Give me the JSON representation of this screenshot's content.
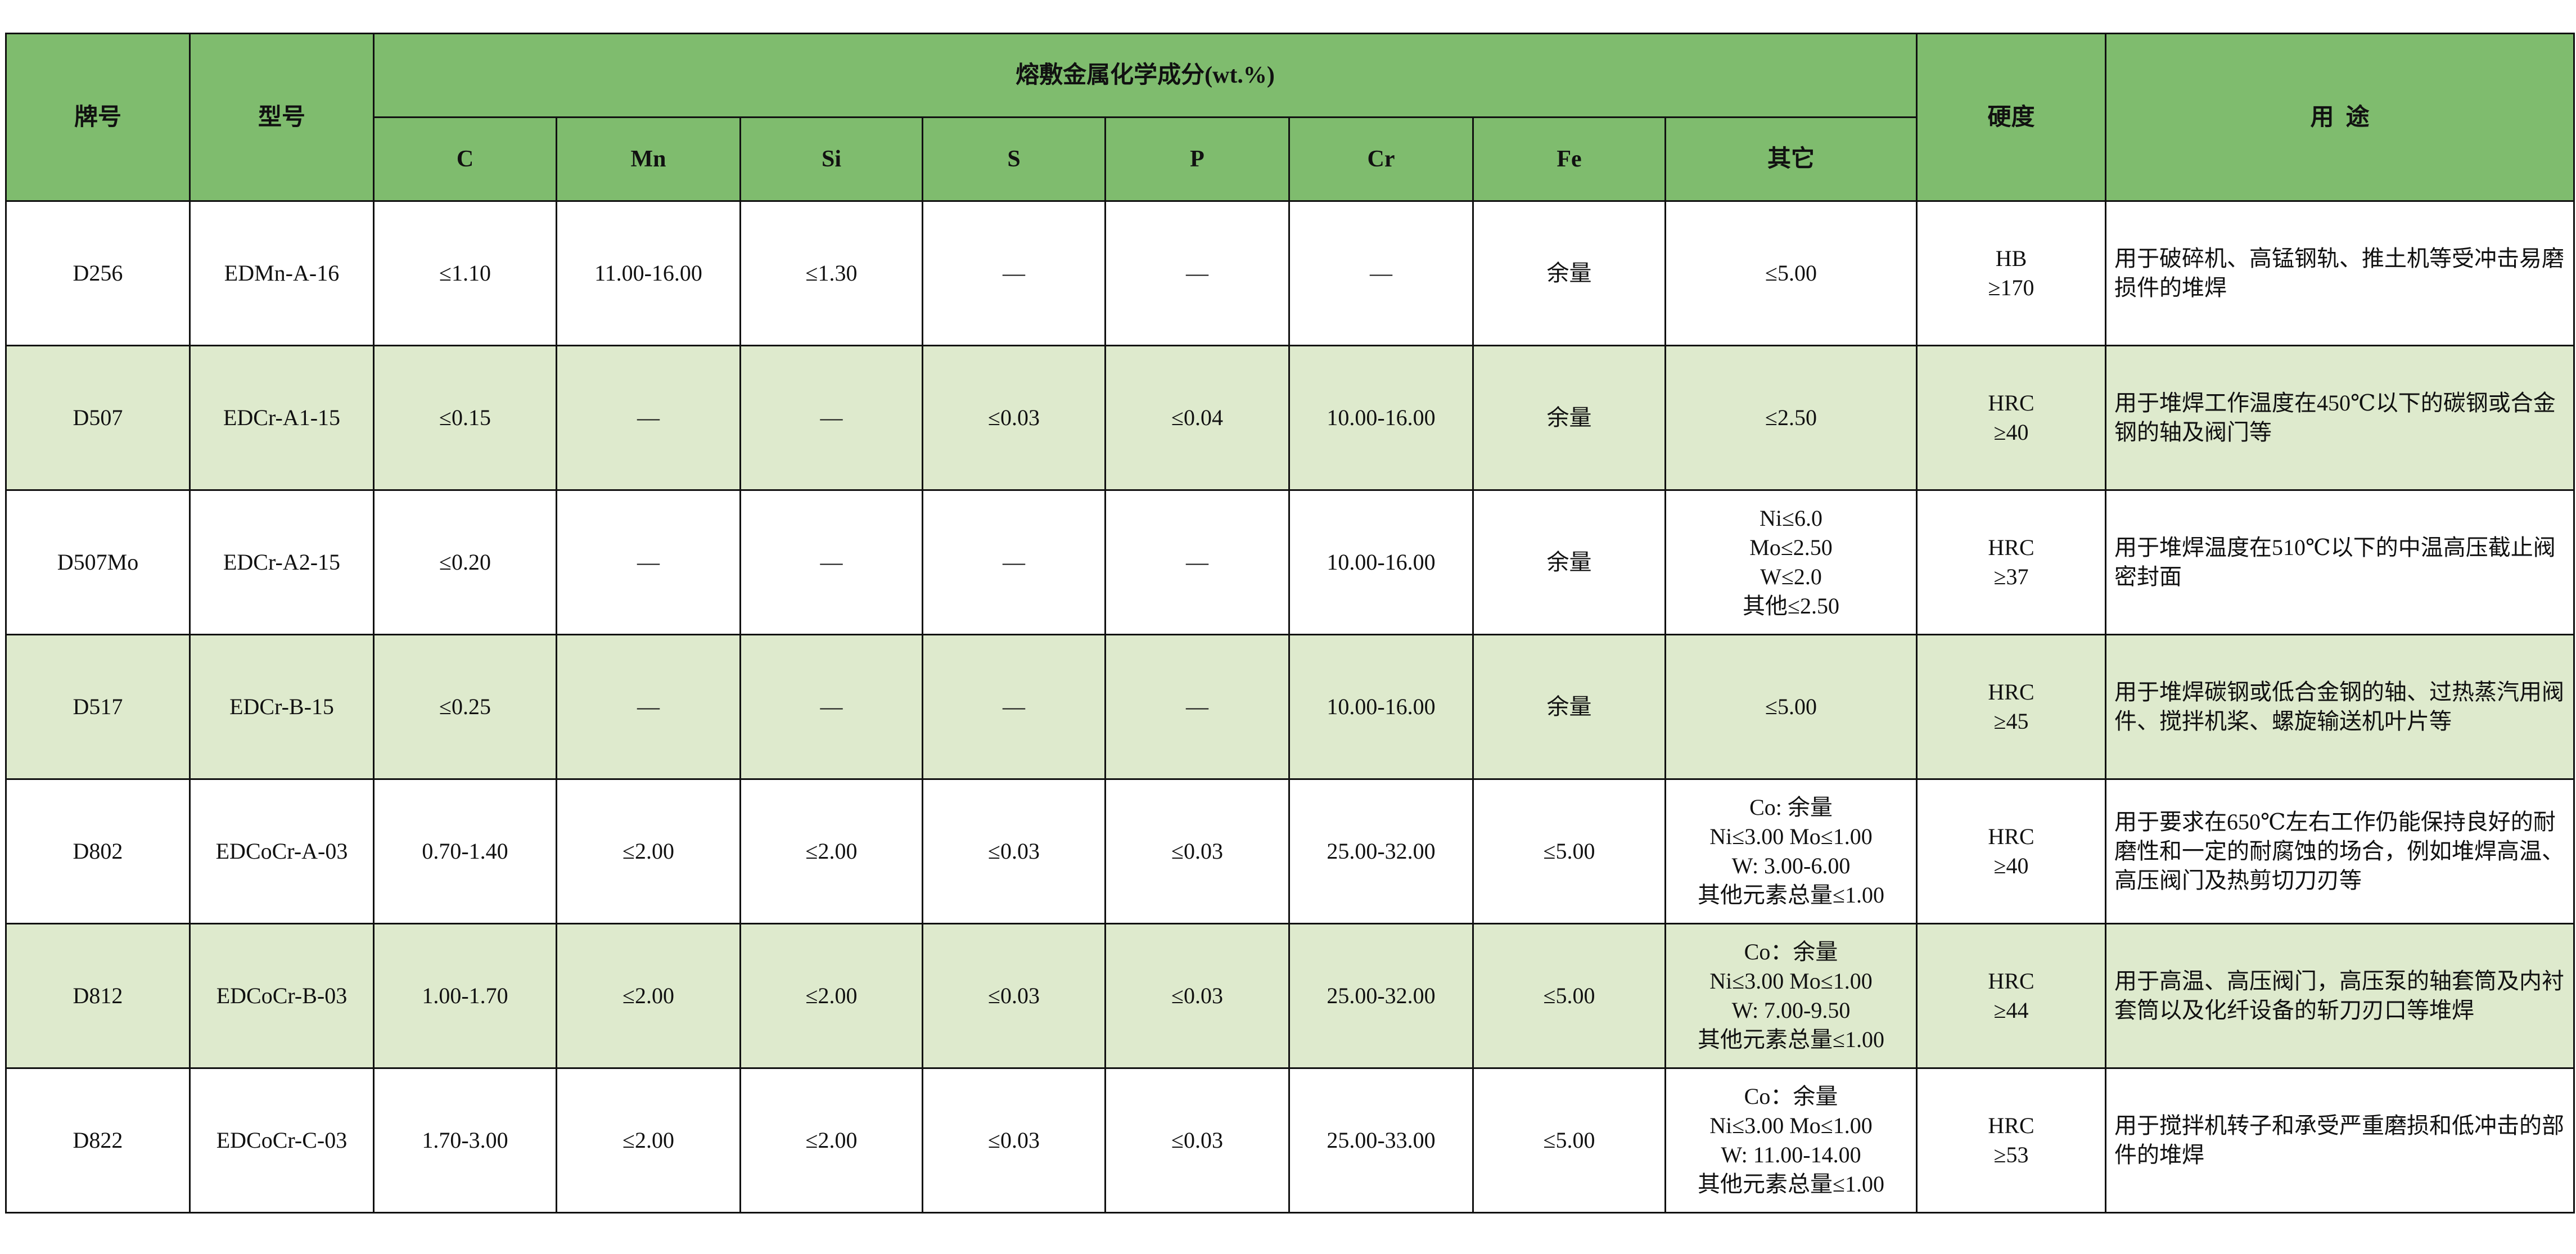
{
  "header": {
    "brand": "牌号",
    "model": "型号",
    "composition_group": "熔敷金属化学成分(wt.%)",
    "elements": [
      "C",
      "Mn",
      "Si",
      "S",
      "P",
      "Cr",
      "Fe",
      "其它"
    ],
    "hardness": "硬度",
    "usage": "用  途"
  },
  "colors": {
    "header_bg": "#7fbc6e",
    "alt_row_bg": "#deeacd"
  },
  "rows": [
    {
      "brand": "D256",
      "model": "EDMn-A-16",
      "C": "≤1.10",
      "Mn": "11.00-16.00",
      "Si": "≤1.30",
      "S": "—",
      "P": "—",
      "Cr": "—",
      "Fe": "余量",
      "other": "≤5.00",
      "hardness": "HB\n≥170",
      "usage": "用于破碎机、高锰钢轨、推土机等受冲击易磨损件的堆焊"
    },
    {
      "brand": "D507",
      "model": "EDCr-A1-15",
      "C": "≤0.15",
      "Mn": "—",
      "Si": "—",
      "S": "≤0.03",
      "P": "≤0.04",
      "Cr": "10.00-16.00",
      "Fe": "余量",
      "other": "≤2.50",
      "hardness": "HRC\n≥40",
      "usage": "用于堆焊工作温度在450℃以下的碳钢或合金钢的轴及阀门等"
    },
    {
      "brand": "D507Mo",
      "model": "EDCr-A2-15",
      "C": "≤0.20",
      "Mn": "—",
      "Si": "—",
      "S": "—",
      "P": "—",
      "Cr": "10.00-16.00",
      "Fe": "余量",
      "other": "Ni≤6.0\nMo≤2.50\nW≤2.0\n其他≤2.50",
      "hardness": "HRC\n≥37",
      "usage": "用于堆焊温度在510℃以下的中温高压截止阀密封面"
    },
    {
      "brand": "D517",
      "model": "EDCr-B-15",
      "C": "≤0.25",
      "Mn": "—",
      "Si": "—",
      "S": "—",
      "P": "—",
      "Cr": "10.00-16.00",
      "Fe": "余量",
      "other": "≤5.00",
      "hardness": "HRC\n≥45",
      "usage": "用于堆焊碳钢或低合金钢的轴、过热蒸汽用阀件、搅拌机桨、螺旋输送机叶片等"
    },
    {
      "brand": "D802",
      "model": "EDCoCr-A-03",
      "C": "0.70-1.40",
      "Mn": "≤2.00",
      "Si": "≤2.00",
      "S": "≤0.03",
      "P": "≤0.03",
      "Cr": "25.00-32.00",
      "Fe": "≤5.00",
      "other": "Co: 余量\nNi≤3.00 Mo≤1.00\nW: 3.00-6.00\n其他元素总量≤1.00",
      "hardness": "HRC\n≥40",
      "usage": "用于要求在650℃左右工作仍能保持良好的耐磨性和一定的耐腐蚀的场合，例如堆焊高温、高压阀门及热剪切刀刃等"
    },
    {
      "brand": "D812",
      "model": "EDCoCr-B-03",
      "C": "1.00-1.70",
      "Mn": "≤2.00",
      "Si": "≤2.00",
      "S": "≤0.03",
      "P": "≤0.03",
      "Cr": "25.00-32.00",
      "Fe": "≤5.00",
      "other": "Co：余量\nNi≤3.00 Mo≤1.00\nW: 7.00-9.50\n其他元素总量≤1.00",
      "hardness": "HRC\n≥44",
      "usage": "用于高温、高压阀门，高压泵的轴套筒及内衬套筒以及化纤设备的斩刀刃口等堆焊"
    },
    {
      "brand": "D822",
      "model": "EDCoCr-C-03",
      "C": "1.70-3.00",
      "Mn": "≤2.00",
      "Si": "≤2.00",
      "S": "≤0.03",
      "P": "≤0.03",
      "Cr": "25.00-33.00",
      "Fe": "≤5.00",
      "other": "Co：余量\nNi≤3.00 Mo≤1.00\nW: 11.00-14.00\n其他元素总量≤1.00",
      "hardness": "HRC\n≥53",
      "usage": "用于搅拌机转子和承受严重磨损和低冲击的部件的堆焊"
    }
  ]
}
